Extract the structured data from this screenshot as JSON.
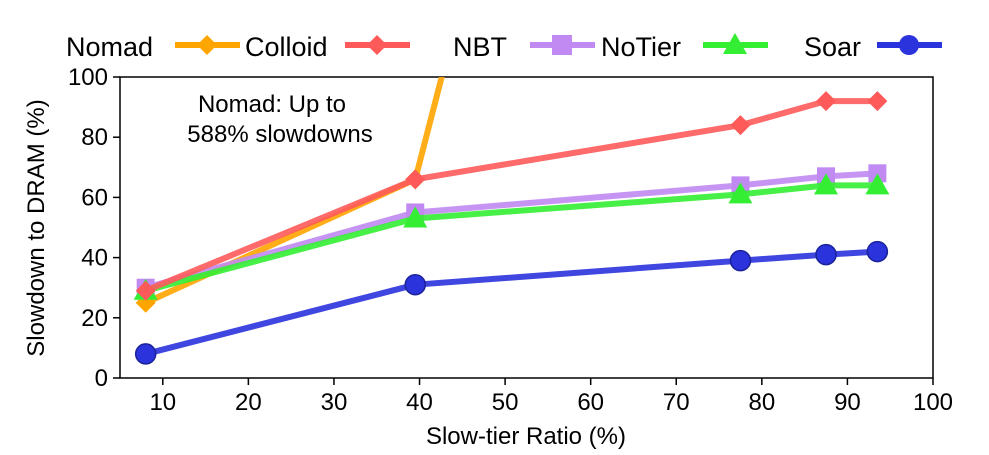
{
  "chart_data": {
    "type": "line",
    "xlabel": "Slow-tier Ratio (%)",
    "ylabel": "Slowdown to DRAM (%)",
    "xlim": [
      5,
      100
    ],
    "ylim": [
      0,
      100
    ],
    "xticks": [
      10,
      20,
      30,
      40,
      50,
      60,
      70,
      80,
      90,
      100
    ],
    "yticks": [
      0,
      20,
      40,
      60,
      80,
      100
    ],
    "grid": false,
    "legend_position": "top, above plot",
    "annotation": {
      "lines": [
        "Nomad: Up to",
        "588% slowdowns"
      ],
      "color": "#FFA500"
    },
    "series": [
      {
        "name": "Nomad",
        "color": "#FFA500",
        "marker": "diamond",
        "points": [
          [
            8,
            25
          ],
          [
            39.5,
            66
          ],
          [
            43.5,
            110
          ]
        ]
      },
      {
        "name": "Colloid",
        "color": "#FF5A5A",
        "marker": "diamond",
        "points": [
          [
            8,
            29
          ],
          [
            39.5,
            66
          ],
          [
            77.5,
            84
          ],
          [
            87.5,
            92
          ],
          [
            93.5,
            92
          ]
        ]
      },
      {
        "name": "NBT",
        "color": "#C08AF2",
        "marker": "square",
        "points": [
          [
            8,
            30
          ],
          [
            39.5,
            55
          ],
          [
            77.5,
            64
          ],
          [
            87.5,
            67
          ],
          [
            93.5,
            68
          ]
        ]
      },
      {
        "name": "NoTier",
        "color": "#33EE33",
        "marker": "triangle",
        "points": [
          [
            8,
            29
          ],
          [
            39.5,
            53
          ],
          [
            77.5,
            61
          ],
          [
            87.5,
            64
          ],
          [
            93.5,
            64
          ]
        ]
      },
      {
        "name": "Soar",
        "color": "#2B33DD",
        "marker": "circle",
        "points": [
          [
            8,
            8
          ],
          [
            39.5,
            31
          ],
          [
            77.5,
            39
          ],
          [
            87.5,
            41
          ],
          [
            93.5,
            42
          ]
        ]
      }
    ]
  }
}
